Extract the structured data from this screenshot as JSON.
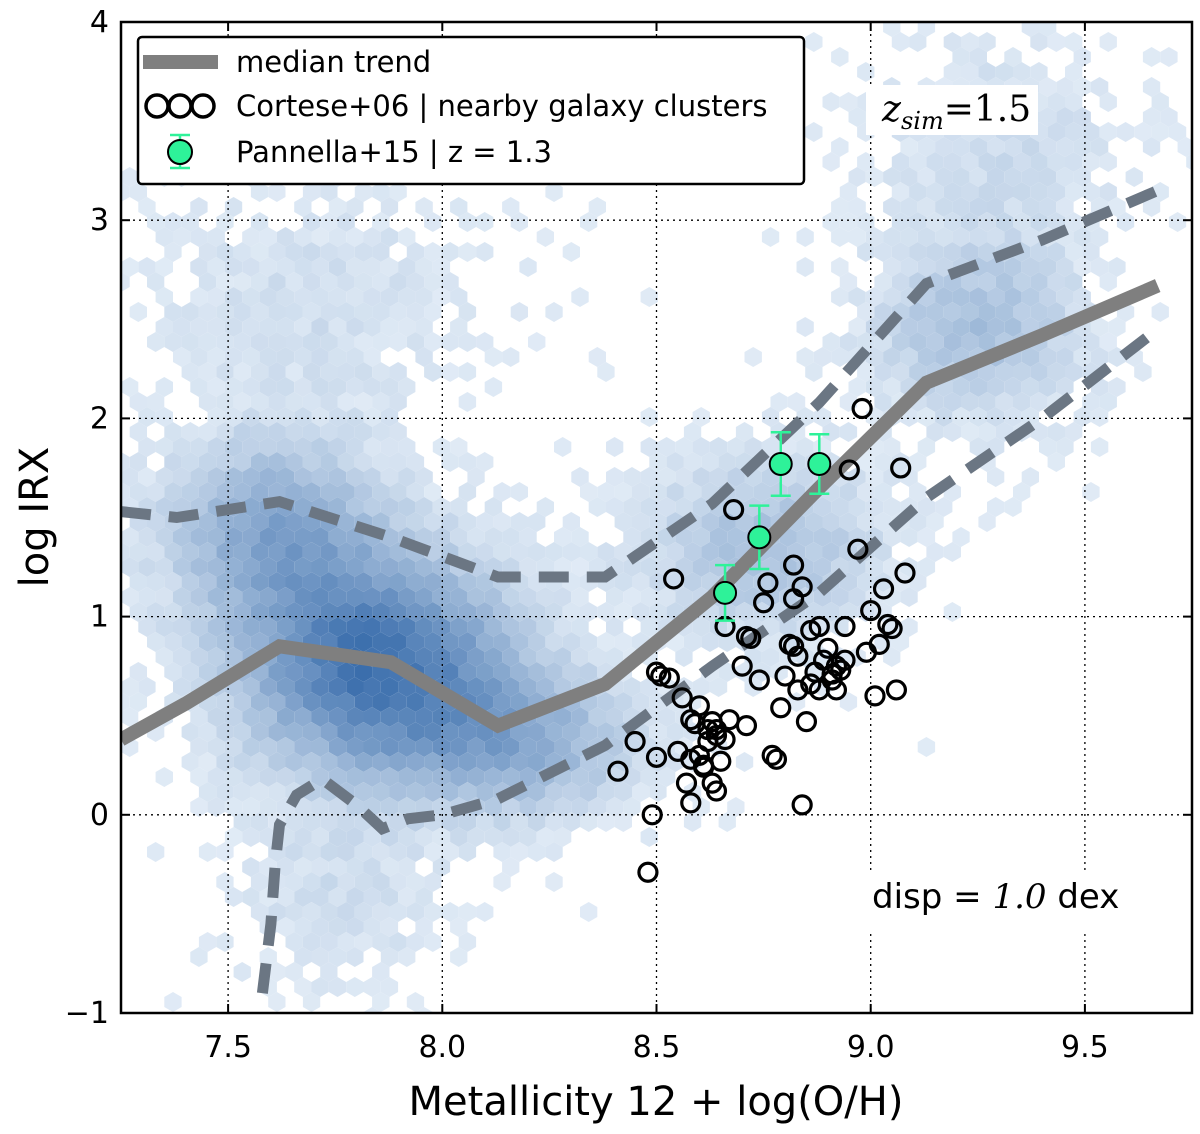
{
  "chart_data": {
    "type": "scatter",
    "xlabel": "Metallicity 12 + log(O/H)",
    "ylabel": "log IRX",
    "xlim": [
      7.25,
      9.75
    ],
    "ylim": [
      -1,
      4
    ],
    "grid": true,
    "legend_position": "top-left",
    "x_ticks": [
      "7.5",
      "8.0",
      "8.5",
      "9.0",
      "9.5"
    ],
    "x_tick_values": [
      7.5,
      8.0,
      8.5,
      9.0,
      9.5
    ],
    "y_ticks": [
      "−1",
      "0",
      "1",
      "2",
      "3",
      "4"
    ],
    "y_tick_values": [
      -1,
      0,
      1,
      2,
      3,
      4
    ],
    "annotation_zsim": {
      "var": "z",
      "sub": "sim",
      "value": "=1.5"
    },
    "annotation_disp": {
      "prefix": "disp = ",
      "value": "1.0",
      "unit": " dex"
    },
    "legend": {
      "median": "median trend",
      "cortese": "Cortese+06 | nearby galaxy clusters",
      "pannella": "Pannella+15 | z = 1.3"
    },
    "colors": {
      "median": "#7f7f7f",
      "bounds": "#6b7683",
      "pannella": "#2ef299",
      "errbar": "#2ef299",
      "hexbin": "#2f6fb0"
    },
    "series": [
      {
        "name": "median trend",
        "style": "solid",
        "x": [
          7.25,
          7.4,
          7.62,
          7.88,
          8.13,
          8.38,
          8.63,
          8.88,
          9.13,
          9.4,
          9.67
        ],
        "y": [
          0.38,
          0.56,
          0.85,
          0.77,
          0.45,
          0.66,
          1.1,
          1.65,
          2.18,
          2.42,
          2.67
        ]
      },
      {
        "name": "upper bound",
        "style": "dashed",
        "x": [
          7.25,
          7.38,
          7.62,
          7.88,
          8.13,
          8.38,
          8.63,
          8.88,
          9.13,
          9.4,
          9.67
        ],
        "y": [
          1.53,
          1.5,
          1.58,
          1.4,
          1.2,
          1.2,
          1.57,
          2.08,
          2.68,
          2.9,
          3.15
        ]
      },
      {
        "name": "lower bound",
        "style": "dashed",
        "x": [
          7.58,
          7.6,
          7.61,
          7.62,
          7.66,
          7.72,
          7.8,
          7.86,
          7.92,
          8.0,
          8.13,
          8.38,
          8.63,
          8.88,
          9.13,
          9.4,
          9.67
        ],
        "y": [
          -0.9,
          -0.55,
          -0.25,
          -0.05,
          0.1,
          0.18,
          0.05,
          -0.07,
          -0.02,
          0.0,
          0.08,
          0.35,
          0.75,
          1.12,
          1.6,
          2.0,
          2.45
        ]
      }
    ],
    "cortese": {
      "x": [
        8.48,
        8.49,
        8.5,
        8.41,
        8.45,
        8.5,
        8.51,
        8.53,
        8.54,
        8.55,
        8.57,
        8.58,
        8.58,
        8.59,
        8.6,
        8.61,
        8.62,
        8.62,
        8.63,
        8.63,
        8.64,
        8.64,
        8.65,
        8.67,
        8.68,
        8.7,
        8.71,
        8.72,
        8.74,
        8.75,
        8.76,
        8.77,
        8.78,
        8.79,
        8.8,
        8.81,
        8.82,
        8.82,
        8.83,
        8.84,
        8.85,
        8.86,
        8.86,
        8.87,
        8.88,
        8.89,
        8.9,
        8.91,
        8.92,
        8.92,
        8.93,
        8.94,
        8.94,
        8.95,
        8.97,
        8.98,
        8.99,
        9.0,
        9.01,
        9.02,
        9.03,
        9.04,
        9.05,
        9.06,
        9.07,
        9.08,
        8.66,
        8.71,
        8.56,
        8.6,
        8.82,
        8.84,
        8.88,
        8.91,
        8.83,
        8.64,
        8.66,
        8.58,
        8.61
      ],
      "y": [
        -0.29,
        0.0,
        0.29,
        0.22,
        0.37,
        0.72,
        0.7,
        0.69,
        1.19,
        0.32,
        0.16,
        0.06,
        0.28,
        0.46,
        0.3,
        0.25,
        0.43,
        0.37,
        0.47,
        0.16,
        0.12,
        0.43,
        0.27,
        0.48,
        1.54,
        0.75,
        0.45,
        0.89,
        0.68,
        1.07,
        1.17,
        0.3,
        0.28,
        0.54,
        0.7,
        0.86,
        1.26,
        0.85,
        0.63,
        0.05,
        0.47,
        0.66,
        0.93,
        0.72,
        0.63,
        0.78,
        0.84,
        0.68,
        0.63,
        0.75,
        0.73,
        0.78,
        0.95,
        1.74,
        1.34,
        2.05,
        0.82,
        1.03,
        0.6,
        0.86,
        1.14,
        0.96,
        0.94,
        0.63,
        1.75,
        1.22,
        0.95,
        0.9,
        0.59,
        0.55,
        1.09,
        1.15,
        0.95,
        0.71,
        0.8,
        0.4,
        0.38,
        0.48,
        0.24
      ]
    },
    "pannella": {
      "x": [
        8.66,
        8.74,
        8.79,
        8.88
      ],
      "y": [
        1.12,
        1.4,
        1.77,
        1.77
      ],
      "yerr": [
        0.14,
        0.16,
        0.16,
        0.15
      ]
    }
  }
}
